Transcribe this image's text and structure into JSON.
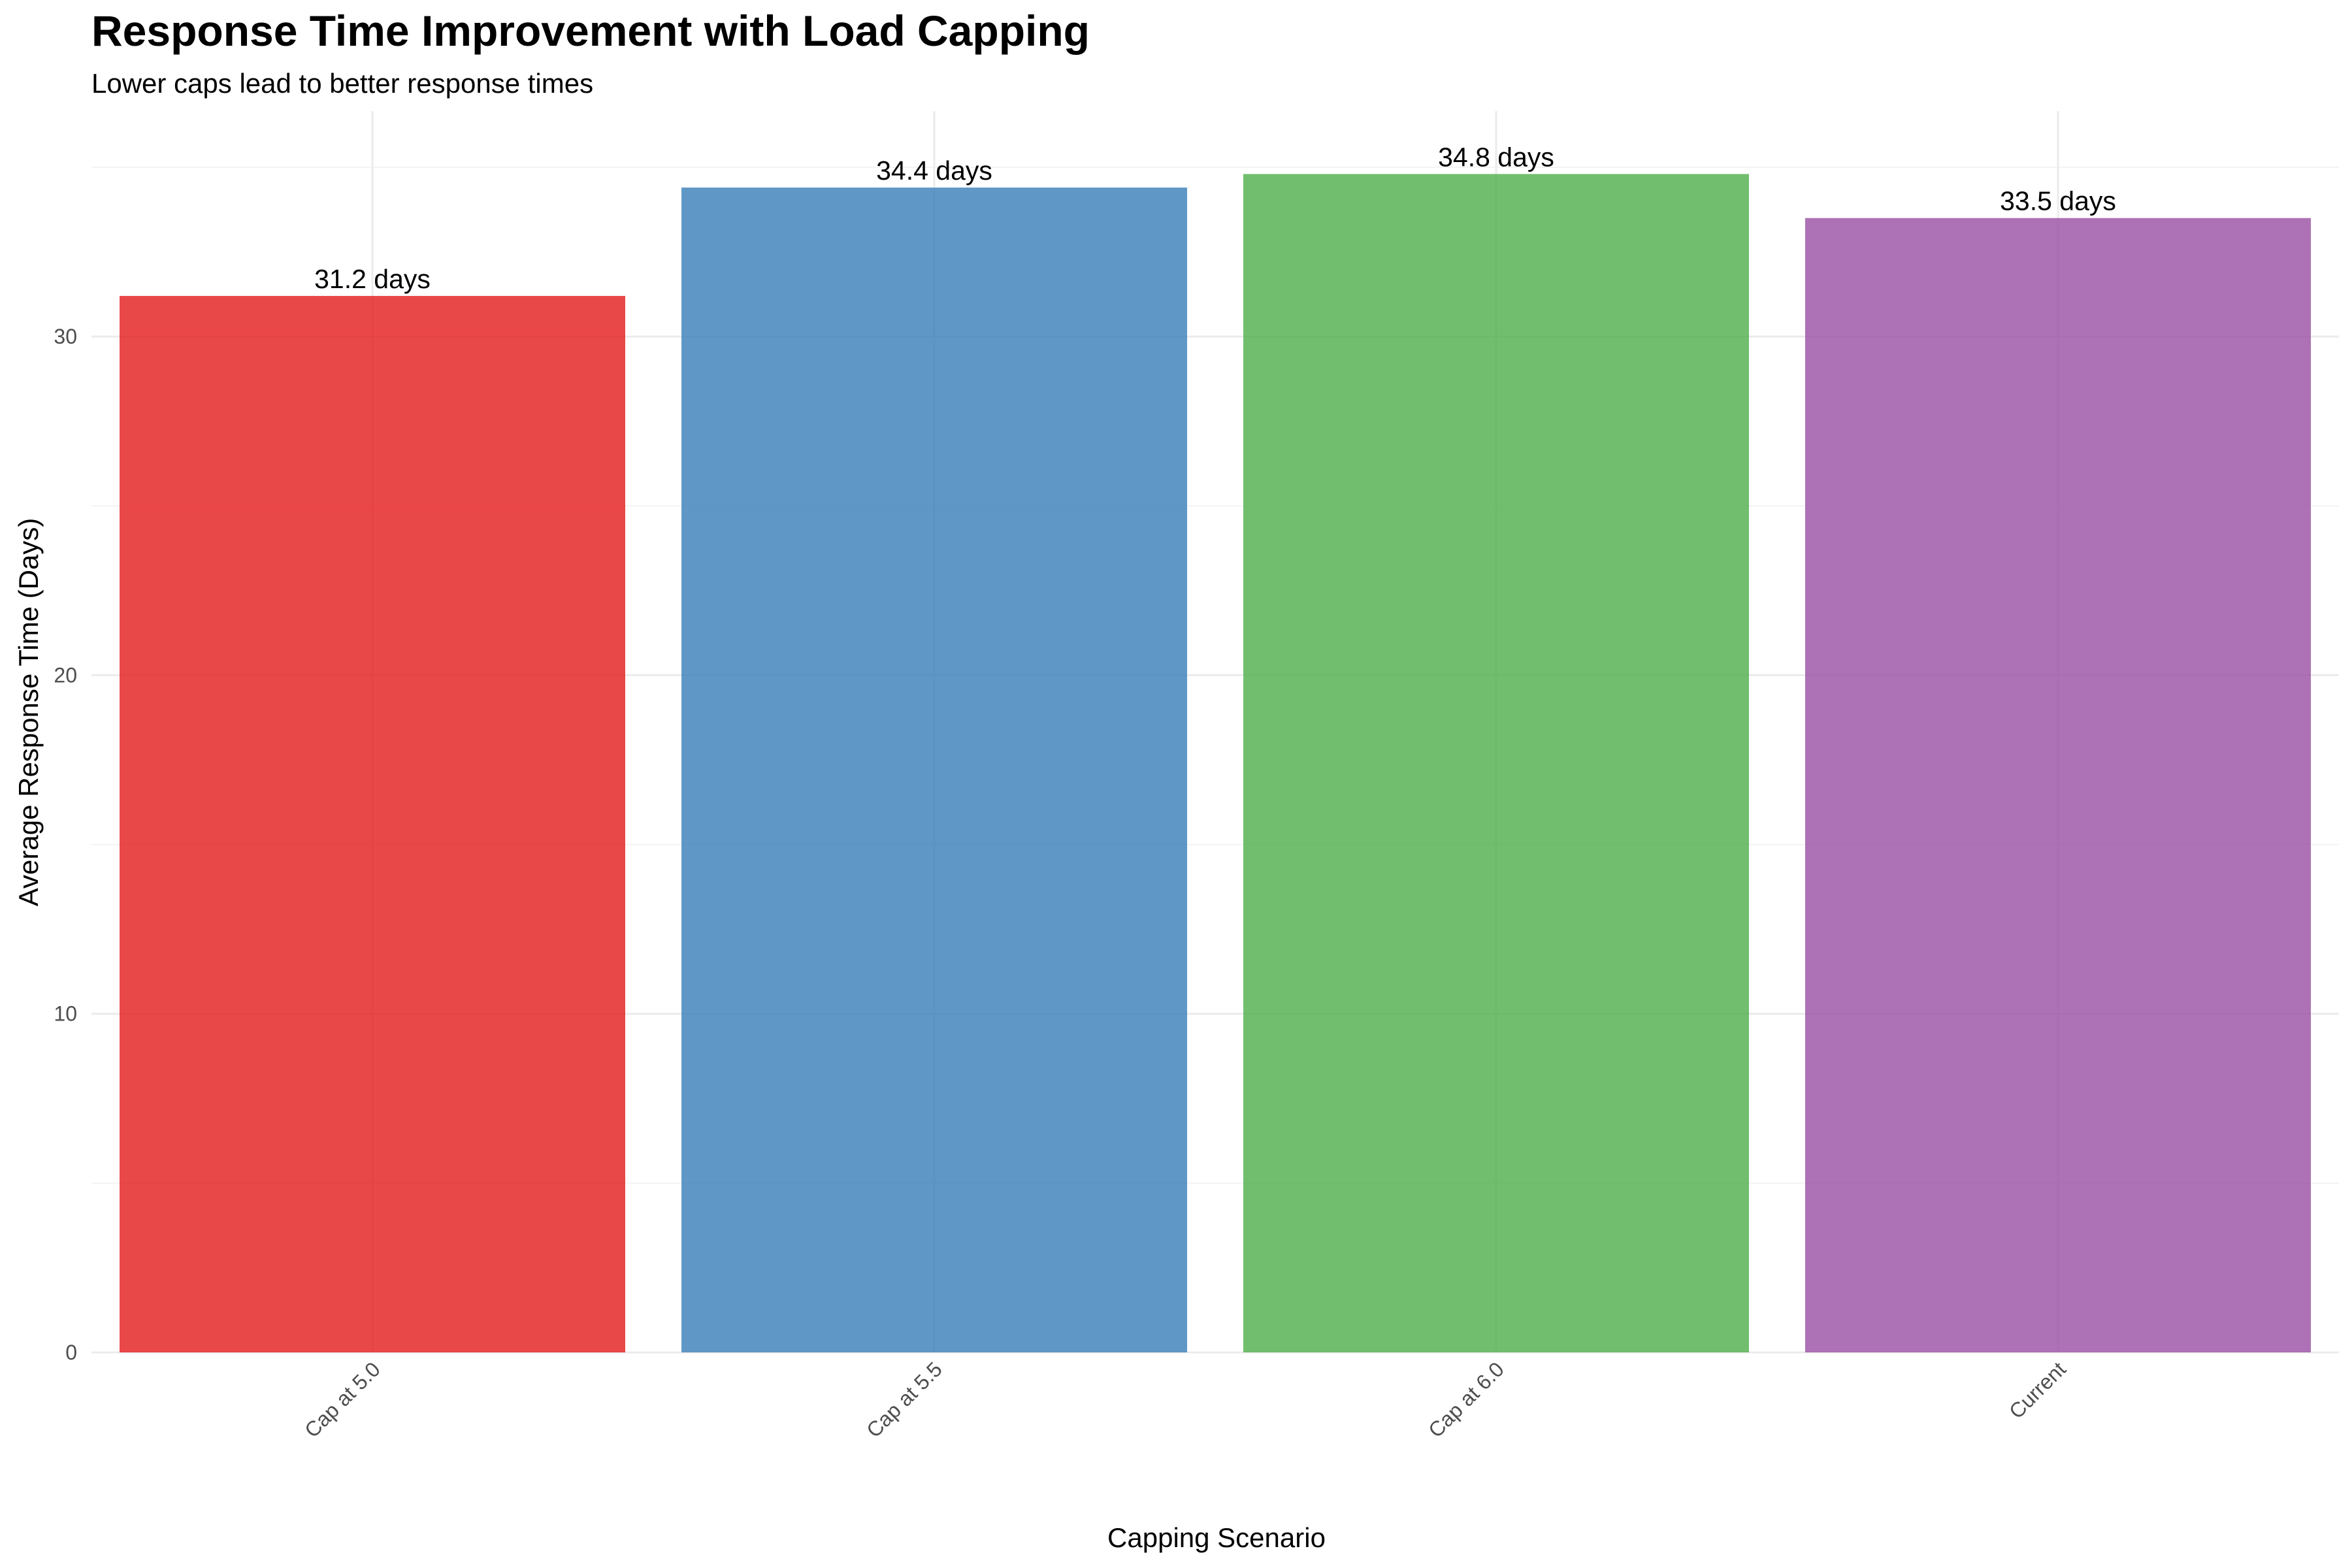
{
  "chart_data": {
    "type": "bar",
    "title": "Response Time Improvement with Load Capping",
    "subtitle": "Lower caps lead to better response times",
    "xlabel": "Capping Scenario",
    "ylabel": "Average Response Time (Days)",
    "categories": [
      "Cap at 5.0",
      "Cap at 5.5",
      "Cap at 6.0",
      "Current"
    ],
    "values": [
      31.2,
      34.4,
      34.8,
      33.5
    ],
    "value_labels": [
      "31.2 days",
      "34.4 days",
      "34.8 days",
      "33.5 days"
    ],
    "colors": [
      "#e41a1c",
      "#377eb8",
      "#4daf4a",
      "#984ea3"
    ],
    "ylim": [
      0,
      36.5
    ],
    "y_ticks": [
      0,
      10,
      20,
      30
    ],
    "y_tick_labels": [
      "0",
      "10",
      "20",
      "30"
    ],
    "grid": true,
    "legend": "none"
  }
}
